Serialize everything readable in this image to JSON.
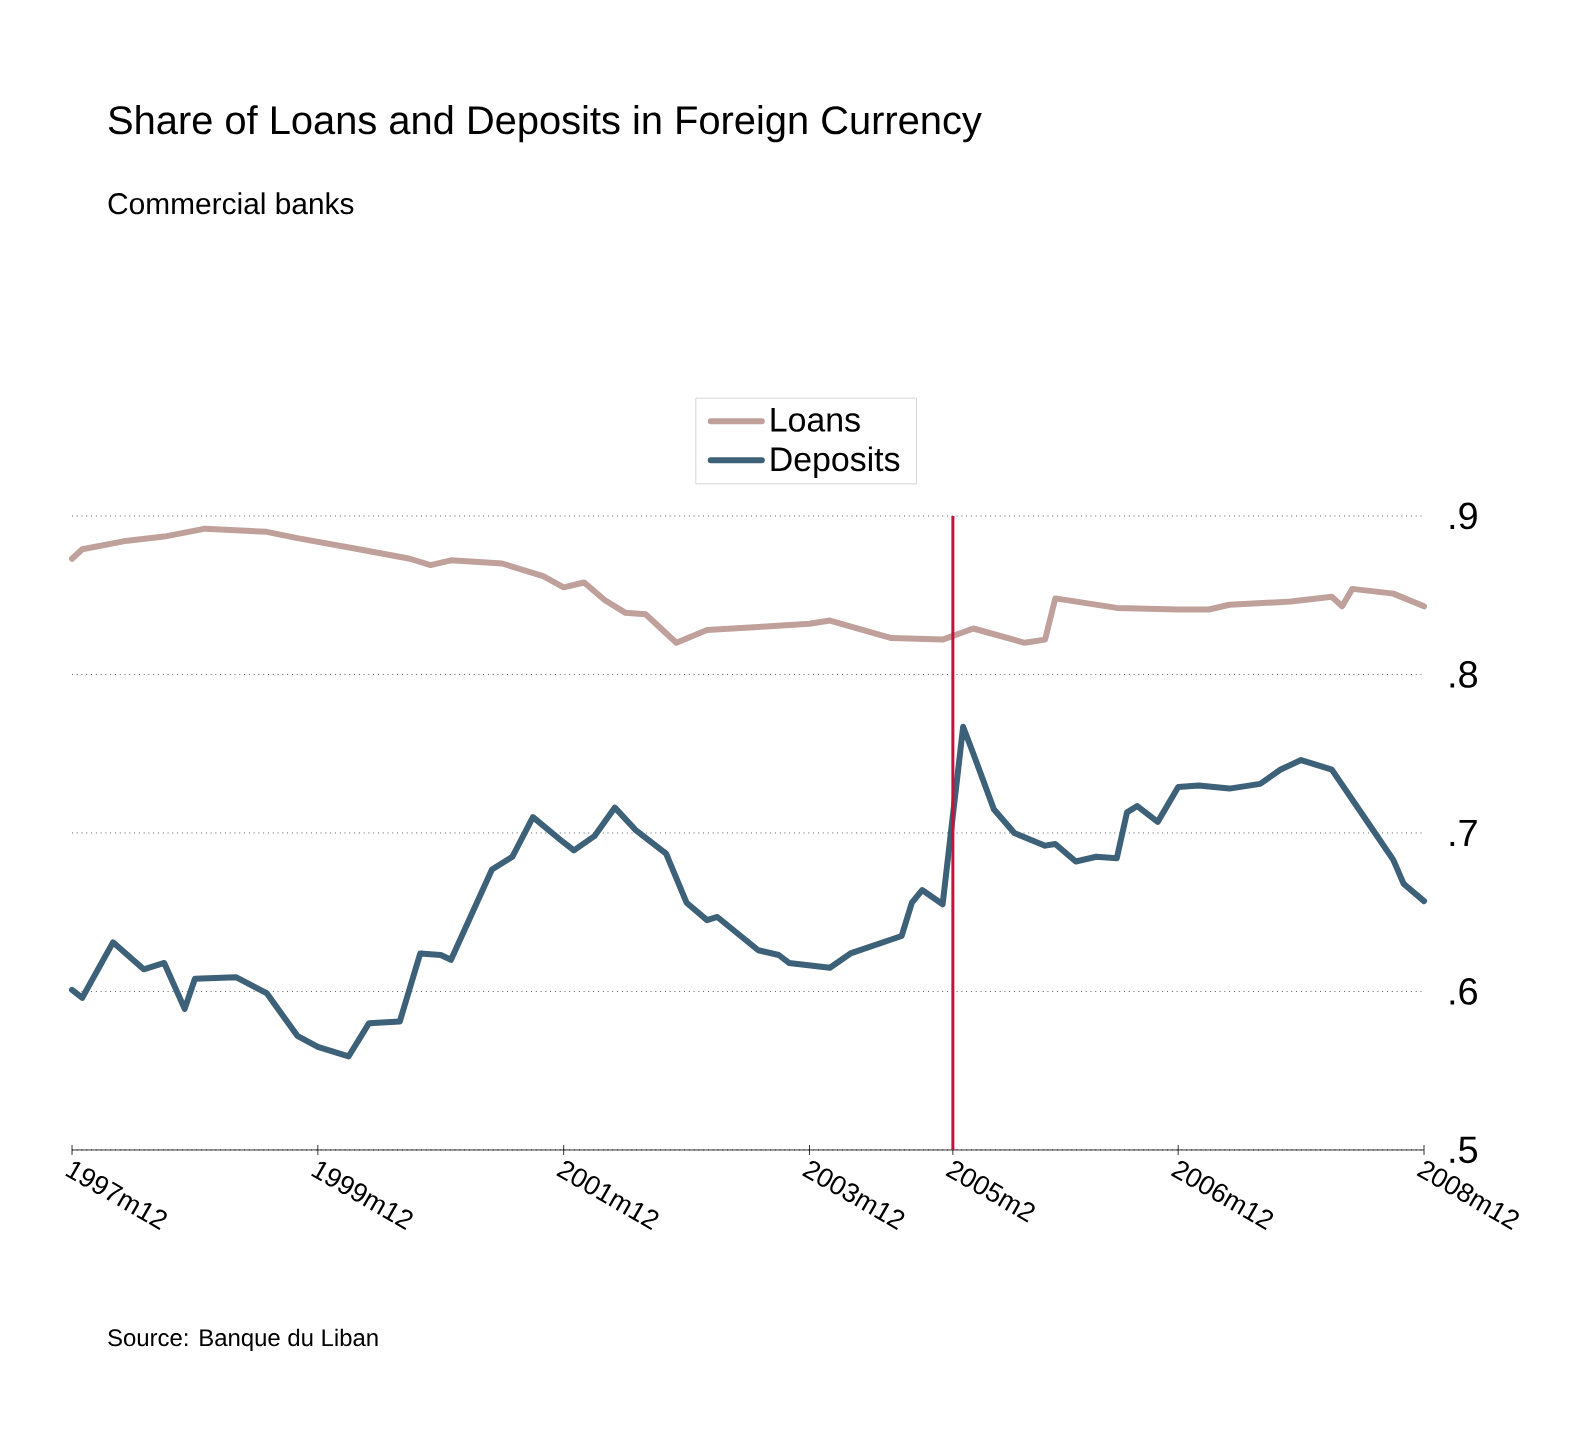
{
  "chart_data": {
    "type": "line",
    "title": "Share of Loans and Deposits in Foreign Currency",
    "subtitle": "Commercial banks",
    "annotations": [
      "Source: Banque du Liban"
    ],
    "xlim": [
      "1997-12",
      "2008-12"
    ],
    "xticks": [
      {
        "value": "1997-12",
        "label": "1997m12"
      },
      {
        "value": "1999-12",
        "label": "1999m12"
      },
      {
        "value": "2001-12",
        "label": "2001m12"
      },
      {
        "value": "2003-12",
        "label": "2003m12"
      },
      {
        "value": "2005-02",
        "label": "2005m2"
      },
      {
        "value": "2006-12",
        "label": "2006m12"
      },
      {
        "value": "2008-12",
        "label": "2008m12"
      }
    ],
    "ylim": [
      0.5,
      0.9
    ],
    "yticks": [
      {
        "value": 0.5,
        "label": ".5"
      },
      {
        "value": 0.6,
        "label": ".6"
      },
      {
        "value": 0.7,
        "label": ".7"
      },
      {
        "value": 0.8,
        "label": ".8"
      },
      {
        "value": 0.9,
        "label": ".9"
      }
    ],
    "grid": "y",
    "legend": "top",
    "line_style": "solid",
    "ref_lines": [
      {
        "axis": "x",
        "value": "2005-02",
        "color": "#c8103c"
      }
    ],
    "series": [
      {
        "name": "Loans",
        "color": "#c0a09a",
        "x": [
          "1997-12",
          "1998-01",
          "1998-05",
          "1998-09",
          "1999-01",
          "1999-07",
          "1999-10",
          "2000-04",
          "2000-09",
          "2000-11",
          "2001-01",
          "2001-06",
          "2001-10",
          "2001-12",
          "2002-02",
          "2002-04",
          "2002-06",
          "2002-08",
          "2002-11",
          "2003-02",
          "2003-07",
          "2003-12",
          "2004-02",
          "2004-08",
          "2005-01",
          "2005-04",
          "2005-09",
          "2005-11",
          "2005-12",
          "2006-06",
          "2006-12",
          "2007-03",
          "2007-05",
          "2007-11",
          "2008-03",
          "2008-04",
          "2008-05",
          "2008-09",
          "2008-12"
        ],
        "values": [
          0.873,
          0.879,
          0.884,
          0.887,
          0.892,
          0.89,
          0.886,
          0.879,
          0.873,
          0.869,
          0.872,
          0.87,
          0.862,
          0.855,
          0.858,
          0.847,
          0.839,
          0.838,
          0.82,
          0.828,
          0.83,
          0.832,
          0.834,
          0.823,
          0.822,
          0.829,
          0.82,
          0.822,
          0.848,
          0.842,
          0.841,
          0.841,
          0.844,
          0.846,
          0.849,
          0.843,
          0.854,
          0.851,
          0.843
        ]
      },
      {
        "name": "Deposits",
        "color": "#3d6178",
        "x": [
          "1997-12",
          "1998-01",
          "1998-04",
          "1998-07",
          "1998-09",
          "1998-11",
          "1998-12",
          "1999-04",
          "1999-07",
          "1999-10",
          "1999-12",
          "2000-03",
          "2000-05",
          "2000-08",
          "2000-10",
          "2000-12",
          "2001-01",
          "2001-05",
          "2001-07",
          "2001-09",
          "2001-12",
          "2002-01",
          "2002-03",
          "2002-05",
          "2002-07",
          "2002-10",
          "2002-12",
          "2003-02",
          "2003-03",
          "2003-07",
          "2003-09",
          "2003-10",
          "2004-02",
          "2004-04",
          "2004-09",
          "2004-10",
          "2004-11",
          "2005-01",
          "2005-03",
          "2005-04",
          "2005-06",
          "2005-08",
          "2005-11",
          "2005-12",
          "2006-02",
          "2006-04",
          "2006-06",
          "2006-07",
          "2006-08",
          "2006-10",
          "2006-12",
          "2007-02",
          "2007-05",
          "2007-08",
          "2007-10",
          "2007-12",
          "2008-03",
          "2008-05",
          "2008-07",
          "2008-09",
          "2008-10",
          "2008-12"
        ],
        "values": [
          0.601,
          0.596,
          0.631,
          0.614,
          0.618,
          0.589,
          0.608,
          0.609,
          0.599,
          0.572,
          0.565,
          0.559,
          0.58,
          0.581,
          0.624,
          0.623,
          0.62,
          0.677,
          0.685,
          0.71,
          0.694,
          0.689,
          0.698,
          0.716,
          0.702,
          0.687,
          0.656,
          0.645,
          0.647,
          0.626,
          0.623,
          0.618,
          0.615,
          0.624,
          0.635,
          0.656,
          0.664,
          0.655,
          0.767,
          0.75,
          0.715,
          0.7,
          0.692,
          0.693,
          0.682,
          0.685,
          0.684,
          0.713,
          0.717,
          0.707,
          0.729,
          0.73,
          0.728,
          0.731,
          0.74,
          0.746,
          0.74,
          0.721,
          0.702,
          0.683,
          0.668,
          0.657
        ]
      }
    ]
  }
}
